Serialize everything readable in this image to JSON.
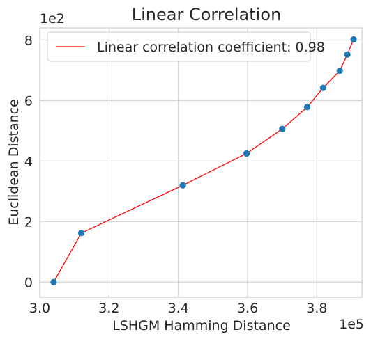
{
  "chart_data": {
    "type": "line",
    "title": "Linear Correlation",
    "xlabel": "LSHGM Hamming Distance",
    "ylabel": "Euclidean Distance",
    "x_exponent": "1e5",
    "y_exponent": "1e2",
    "xlim": [
      3.0,
      3.93
    ],
    "ylim": [
      -0.5,
      8.4
    ],
    "x_ticks": [
      "3.0",
      "3.2",
      "3.4",
      "3.6",
      "3.8"
    ],
    "y_ticks": [
      "0",
      "2",
      "4",
      "6",
      "8"
    ],
    "grid": true,
    "legend_position": "top-left",
    "series": [
      {
        "name": "Linear correlation coefficient: 0.98",
        "line_color": "#ff0000",
        "marker_color": "#1f77b4",
        "x": [
          3.04,
          3.12,
          3.413,
          3.597,
          3.7,
          3.772,
          3.818,
          3.866,
          3.888,
          3.906
        ],
        "y": [
          0.0,
          1.62,
          3.2,
          4.25,
          5.06,
          5.78,
          6.42,
          6.98,
          7.52,
          8.02
        ]
      }
    ]
  }
}
